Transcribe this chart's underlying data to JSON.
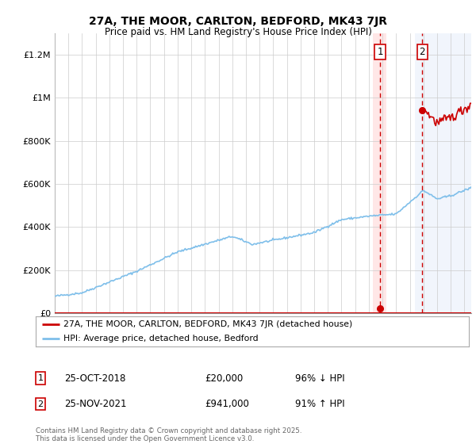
{
  "title": "27A, THE MOOR, CARLTON, BEDFORD, MK43 7JR",
  "subtitle": "Price paid vs. HM Land Registry's House Price Index (HPI)",
  "ylabel_ticks": [
    "£0",
    "£200K",
    "£400K",
    "£600K",
    "£800K",
    "£1M",
    "£1.2M"
  ],
  "ytick_values": [
    0,
    200000,
    400000,
    600000,
    800000,
    1000000,
    1200000
  ],
  "ylim": [
    0,
    1300000
  ],
  "hpi_color": "#7fbfea",
  "price_color": "#cc0000",
  "sale1_date": "25-OCT-2018",
  "sale1_price": 20000,
  "sale1_price_label": "£20,000",
  "sale1_pct": "96% ↓ HPI",
  "sale1_year": 2018.82,
  "sale2_date": "25-NOV-2021",
  "sale2_price": 941000,
  "sale2_price_label": "£941,000",
  "sale2_pct": "91% ↑ HPI",
  "sale2_year": 2021.91,
  "legend_label1": "27A, THE MOOR, CARLTON, BEDFORD, MK43 7JR (detached house)",
  "legend_label2": "HPI: Average price, detached house, Bedford",
  "footer": "Contains HM Land Registry data © Crown copyright and database right 2025.\nThis data is licensed under the Open Government Licence v3.0.",
  "xmin": 1995,
  "xmax": 2025.5,
  "background_color": "#ffffff",
  "shade1_color": "#ffd0d0",
  "shade2_color": "#dce8f8",
  "shade1_alpha": 0.5,
  "shade2_alpha": 0.4,
  "shade1_xmin": 2018.3,
  "shade1_xmax": 2019.3,
  "shade2_xmin": 2021.4,
  "shade2_xmax": 2025.5
}
